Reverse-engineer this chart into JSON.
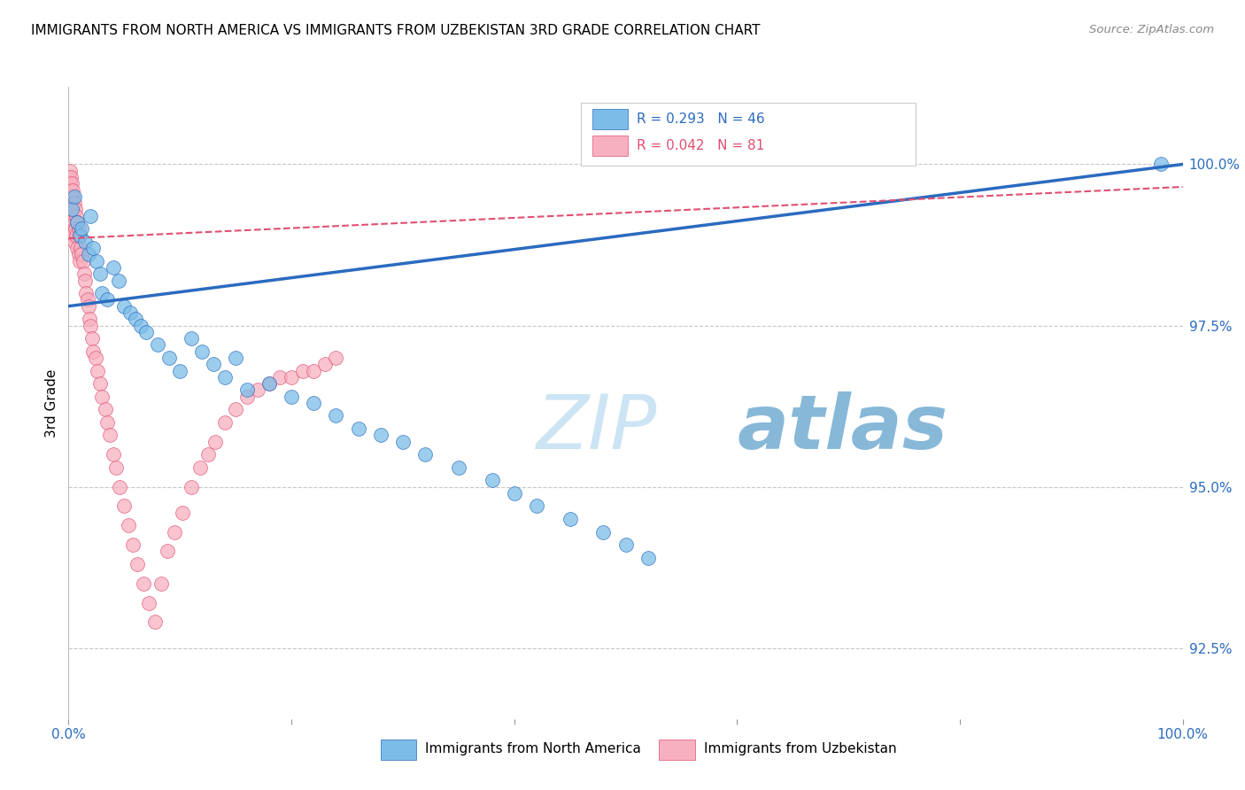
{
  "title": "IMMIGRANTS FROM NORTH AMERICA VS IMMIGRANTS FROM UZBEKISTAN 3RD GRADE CORRELATION CHART",
  "source": "Source: ZipAtlas.com",
  "ylabel": "3rd Grade",
  "ylabel_right_labels": [
    "92.5%",
    "95.0%",
    "97.5%",
    "100.0%"
  ],
  "ylabel_right_values": [
    92.5,
    95.0,
    97.5,
    100.0
  ],
  "xmin": 0.0,
  "xmax": 100.0,
  "ymin": 91.4,
  "ymax": 101.2,
  "legend_label_blue": "Immigrants from North America",
  "legend_label_pink": "Immigrants from Uzbekistan",
  "R_blue": 0.293,
  "N_blue": 46,
  "R_pink": 0.042,
  "N_pink": 81,
  "color_blue": "#7bbde8",
  "color_pink": "#f7b0c0",
  "color_blue_dark": "#2a6bbf",
  "color_pink_dark": "#e05070",
  "watermark_zip": "ZIP",
  "watermark_atlas": "atlas",
  "watermark_color_zip": "#c8dff0",
  "watermark_color_atlas": "#a0c8e8",
  "blue_x": [
    0.3,
    0.5,
    0.8,
    1.0,
    1.2,
    1.5,
    1.8,
    2.0,
    2.2,
    2.5,
    2.8,
    3.0,
    3.5,
    4.0,
    4.5,
    5.0,
    5.5,
    6.0,
    6.5,
    7.0,
    8.0,
    9.0,
    10.0,
    11.0,
    12.0,
    13.0,
    14.0,
    15.0,
    16.0,
    18.0,
    20.0,
    22.0,
    24.0,
    26.0,
    28.0,
    30.0,
    32.0,
    35.0,
    38.0,
    40.0,
    42.0,
    45.0,
    48.0,
    50.0,
    52.0,
    98.0
  ],
  "blue_y": [
    99.3,
    99.5,
    99.1,
    98.9,
    99.0,
    98.8,
    98.6,
    99.2,
    98.7,
    98.5,
    98.3,
    98.0,
    97.9,
    98.4,
    98.2,
    97.8,
    97.7,
    97.6,
    97.5,
    97.4,
    97.2,
    97.0,
    96.8,
    97.3,
    97.1,
    96.9,
    96.7,
    97.0,
    96.5,
    96.6,
    96.4,
    96.3,
    96.1,
    95.9,
    95.8,
    95.7,
    95.5,
    95.3,
    95.1,
    94.9,
    94.7,
    94.5,
    94.3,
    94.1,
    93.9,
    100.0
  ],
  "pink_x": [
    0.05,
    0.05,
    0.1,
    0.1,
    0.1,
    0.15,
    0.15,
    0.2,
    0.2,
    0.2,
    0.25,
    0.25,
    0.3,
    0.3,
    0.3,
    0.35,
    0.35,
    0.4,
    0.4,
    0.4,
    0.5,
    0.5,
    0.5,
    0.6,
    0.6,
    0.7,
    0.7,
    0.8,
    0.8,
    0.9,
    0.9,
    1.0,
    1.0,
    1.1,
    1.2,
    1.3,
    1.4,
    1.5,
    1.6,
    1.7,
    1.8,
    1.9,
    2.0,
    2.1,
    2.2,
    2.4,
    2.6,
    2.8,
    3.0,
    3.3,
    3.5,
    3.7,
    4.0,
    4.3,
    4.6,
    5.0,
    5.4,
    5.8,
    6.2,
    6.7,
    7.2,
    7.8,
    8.3,
    8.9,
    9.5,
    10.2,
    11.0,
    11.8,
    12.5,
    13.2,
    14.0,
    15.0,
    16.0,
    17.0,
    18.0,
    19.0,
    20.0,
    21.0,
    22.0,
    23.0,
    24.0
  ],
  "pink_y": [
    99.8,
    99.5,
    99.9,
    99.6,
    99.3,
    99.7,
    99.4,
    99.8,
    99.5,
    99.1,
    99.6,
    99.3,
    99.7,
    99.4,
    99.0,
    99.5,
    99.2,
    99.6,
    99.3,
    98.9,
    99.4,
    99.1,
    98.8,
    99.3,
    99.0,
    99.2,
    98.9,
    99.1,
    98.7,
    99.0,
    98.6,
    98.9,
    98.5,
    98.7,
    98.6,
    98.5,
    98.3,
    98.2,
    98.0,
    97.9,
    97.8,
    97.6,
    97.5,
    97.3,
    97.1,
    97.0,
    96.8,
    96.6,
    96.4,
    96.2,
    96.0,
    95.8,
    95.5,
    95.3,
    95.0,
    94.7,
    94.4,
    94.1,
    93.8,
    93.5,
    93.2,
    92.9,
    93.5,
    94.0,
    94.3,
    94.6,
    95.0,
    95.3,
    95.5,
    95.7,
    96.0,
    96.2,
    96.4,
    96.5,
    96.6,
    96.7,
    96.7,
    96.8,
    96.8,
    96.9,
    97.0
  ]
}
